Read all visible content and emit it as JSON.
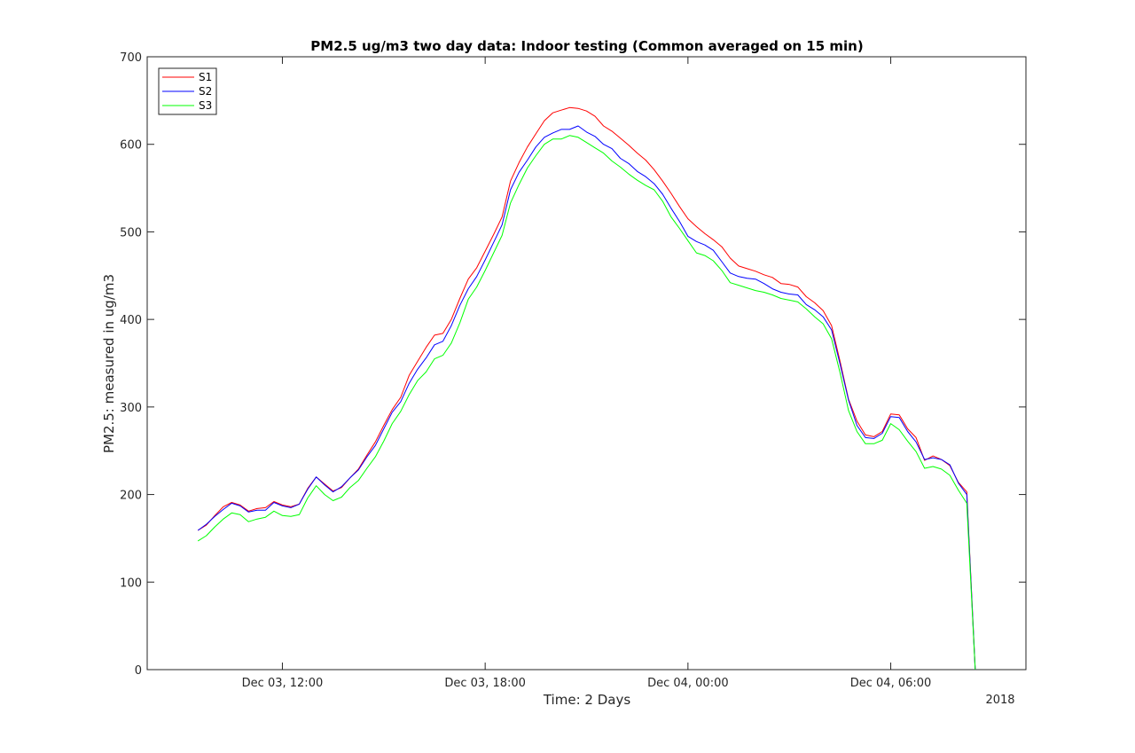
{
  "chart_data": {
    "type": "line",
    "title": "PM2.5 ug/m3 two day data: Indoor testing (Common averaged on 15 min)",
    "xlabel": "Time: 2 Days",
    "ylabel": "PM2.5: measured in ug/m3",
    "x_year_label": "2018",
    "x_ticks": [
      "Dec 03, 12:00",
      "Dec 03, 18:00",
      "Dec 04, 00:00",
      "Dec 04, 06:00"
    ],
    "y_ticks": [
      0,
      100,
      200,
      300,
      400,
      500,
      600,
      700
    ],
    "ylim": [
      0,
      700
    ],
    "xlim_hours": [
      "Dec 03, 08:00",
      "Dec 04, 10:00"
    ],
    "grid": false,
    "legend_position": "top-left",
    "colors": {
      "S1": "#ff0000",
      "S2": "#0000ff",
      "S3": "#00ff00",
      "axes": "#262626"
    },
    "series": [
      {
        "name": "S1",
        "color": "#ff0000",
        "x": [
          "Dec 03, 09:30",
          "Dec 03, 09:45",
          "Dec 03, 10:00",
          "Dec 03, 10:15",
          "Dec 03, 10:30",
          "Dec 03, 10:45",
          "Dec 03, 11:00",
          "Dec 03, 11:15",
          "Dec 03, 11:30",
          "Dec 03, 11:45",
          "Dec 03, 12:00",
          "Dec 03, 12:15",
          "Dec 03, 12:30",
          "Dec 03, 12:45",
          "Dec 03, 13:00",
          "Dec 03, 13:15",
          "Dec 03, 13:30",
          "Dec 03, 13:45",
          "Dec 03, 14:00",
          "Dec 03, 14:15",
          "Dec 03, 14:30",
          "Dec 03, 14:45",
          "Dec 03, 15:00",
          "Dec 03, 15:15",
          "Dec 03, 15:30",
          "Dec 03, 15:45",
          "Dec 03, 16:00",
          "Dec 03, 16:15",
          "Dec 03, 16:30",
          "Dec 03, 16:45",
          "Dec 03, 17:00",
          "Dec 03, 17:15",
          "Dec 03, 17:30",
          "Dec 03, 17:45",
          "Dec 03, 18:00",
          "Dec 03, 18:15",
          "Dec 03, 18:30",
          "Dec 03, 18:45",
          "Dec 03, 19:00",
          "Dec 03, 19:15",
          "Dec 03, 19:30",
          "Dec 03, 19:45",
          "Dec 03, 20:00",
          "Dec 03, 20:15",
          "Dec 03, 20:30",
          "Dec 03, 20:45",
          "Dec 03, 21:00",
          "Dec 03, 21:15",
          "Dec 03, 21:30",
          "Dec 03, 21:45",
          "Dec 03, 22:00",
          "Dec 03, 22:15",
          "Dec 03, 22:30",
          "Dec 03, 22:45",
          "Dec 03, 23:00",
          "Dec 03, 23:15",
          "Dec 03, 23:30",
          "Dec 03, 23:45",
          "Dec 04, 00:00",
          "Dec 04, 00:15",
          "Dec 04, 00:30",
          "Dec 04, 00:45",
          "Dec 04, 01:00",
          "Dec 04, 01:15",
          "Dec 04, 01:30",
          "Dec 04, 01:45",
          "Dec 04, 02:00",
          "Dec 04, 02:15",
          "Dec 04, 02:30",
          "Dec 04, 02:45",
          "Dec 04, 03:00",
          "Dec 04, 03:15",
          "Dec 04, 03:30",
          "Dec 04, 03:45",
          "Dec 04, 04:00",
          "Dec 04, 04:15",
          "Dec 04, 04:30",
          "Dec 04, 04:45",
          "Dec 04, 05:00",
          "Dec 04, 05:15",
          "Dec 04, 05:30",
          "Dec 04, 05:45",
          "Dec 04, 06:00",
          "Dec 04, 06:15",
          "Dec 04, 06:30",
          "Dec 04, 06:45",
          "Dec 04, 07:00",
          "Dec 04, 07:15",
          "Dec 04, 07:30",
          "Dec 04, 07:45",
          "Dec 04, 08:00",
          "Dec 04, 08:15",
          "Dec 04, 08:30"
        ],
        "values": [
          159,
          165,
          176,
          186,
          191,
          188,
          181,
          184,
          185,
          192,
          188,
          186,
          189,
          207,
          220,
          212,
          204,
          208,
          219,
          229,
          245,
          260,
          279,
          297,
          311,
          336,
          352,
          368,
          382,
          384,
          400,
          424,
          446,
          459,
          478,
          497,
          517,
          558,
          579,
          597,
          612,
          627,
          636,
          639,
          642,
          641,
          638,
          632,
          621,
          615,
          607,
          599,
          590,
          582,
          571,
          558,
          544,
          529,
          515,
          506,
          498,
          491,
          483,
          470,
          461,
          458,
          455,
          451,
          448,
          441,
          440,
          437,
          426,
          419,
          410,
          393,
          352,
          309,
          284,
          268,
          266,
          272,
          292,
          291,
          275,
          265,
          239,
          244,
          240,
          233,
          214,
          203,
          0
        ]
      },
      {
        "name": "S2",
        "color": "#0000ff",
        "x": [
          "Dec 03, 09:30",
          "Dec 03, 09:45",
          "Dec 03, 10:00",
          "Dec 03, 10:15",
          "Dec 03, 10:30",
          "Dec 03, 10:45",
          "Dec 03, 11:00",
          "Dec 03, 11:15",
          "Dec 03, 11:30",
          "Dec 03, 11:45",
          "Dec 03, 12:00",
          "Dec 03, 12:15",
          "Dec 03, 12:30",
          "Dec 03, 12:45",
          "Dec 03, 13:00",
          "Dec 03, 13:15",
          "Dec 03, 13:30",
          "Dec 03, 13:45",
          "Dec 03, 14:00",
          "Dec 03, 14:15",
          "Dec 03, 14:30",
          "Dec 03, 14:45",
          "Dec 03, 15:00",
          "Dec 03, 15:15",
          "Dec 03, 15:30",
          "Dec 03, 15:45",
          "Dec 03, 16:00",
          "Dec 03, 16:15",
          "Dec 03, 16:30",
          "Dec 03, 16:45",
          "Dec 03, 17:00",
          "Dec 03, 17:15",
          "Dec 03, 17:30",
          "Dec 03, 17:45",
          "Dec 03, 18:00",
          "Dec 03, 18:15",
          "Dec 03, 18:30",
          "Dec 03, 18:45",
          "Dec 03, 19:00",
          "Dec 03, 19:15",
          "Dec 03, 19:30",
          "Dec 03, 19:45",
          "Dec 03, 20:00",
          "Dec 03, 20:15",
          "Dec 03, 20:30",
          "Dec 03, 20:45",
          "Dec 03, 21:00",
          "Dec 03, 21:15",
          "Dec 03, 21:30",
          "Dec 03, 21:45",
          "Dec 03, 22:00",
          "Dec 03, 22:15",
          "Dec 03, 22:30",
          "Dec 03, 22:45",
          "Dec 03, 23:00",
          "Dec 03, 23:15",
          "Dec 03, 23:30",
          "Dec 03, 23:45",
          "Dec 04, 00:00",
          "Dec 04, 00:15",
          "Dec 04, 00:30",
          "Dec 04, 00:45",
          "Dec 04, 01:00",
          "Dec 04, 01:15",
          "Dec 04, 01:30",
          "Dec 04, 01:45",
          "Dec 04, 02:00",
          "Dec 04, 02:15",
          "Dec 04, 02:30",
          "Dec 04, 02:45",
          "Dec 04, 03:00",
          "Dec 04, 03:15",
          "Dec 04, 03:30",
          "Dec 04, 03:45",
          "Dec 04, 04:00",
          "Dec 04, 04:15",
          "Dec 04, 04:30",
          "Dec 04, 04:45",
          "Dec 04, 05:00",
          "Dec 04, 05:15",
          "Dec 04, 05:30",
          "Dec 04, 05:45",
          "Dec 04, 06:00",
          "Dec 04, 06:15",
          "Dec 04, 06:30",
          "Dec 04, 06:45",
          "Dec 04, 07:00",
          "Dec 04, 07:15",
          "Dec 04, 07:30",
          "Dec 04, 07:45",
          "Dec 04, 08:00",
          "Dec 04, 08:15",
          "Dec 04, 08:30"
        ],
        "values": [
          159,
          166,
          175,
          183,
          190,
          187,
          180,
          182,
          182,
          191,
          187,
          185,
          189,
          206,
          220,
          211,
          203,
          209,
          219,
          228,
          243,
          256,
          275,
          294,
          306,
          327,
          343,
          356,
          371,
          375,
          393,
          416,
          435,
          449,
          468,
          488,
          508,
          548,
          568,
          582,
          597,
          608,
          613,
          617,
          617,
          621,
          614,
          609,
          600,
          595,
          584,
          578,
          569,
          563,
          555,
          543,
          527,
          512,
          495,
          489,
          485,
          479,
          466,
          453,
          449,
          447,
          446,
          441,
          435,
          431,
          429,
          428,
          417,
          411,
          403,
          388,
          349,
          308,
          279,
          265,
          264,
          270,
          289,
          288,
          272,
          260,
          240,
          242,
          240,
          234,
          213,
          200,
          0
        ]
      },
      {
        "name": "S3",
        "color": "#00ff00",
        "x": [
          "Dec 03, 09:30",
          "Dec 03, 09:45",
          "Dec 03, 10:00",
          "Dec 03, 10:15",
          "Dec 03, 10:30",
          "Dec 03, 10:45",
          "Dec 03, 11:00",
          "Dec 03, 11:15",
          "Dec 03, 11:30",
          "Dec 03, 11:45",
          "Dec 03, 12:00",
          "Dec 03, 12:15",
          "Dec 03, 12:30",
          "Dec 03, 12:45",
          "Dec 03, 13:00",
          "Dec 03, 13:15",
          "Dec 03, 13:30",
          "Dec 03, 13:45",
          "Dec 03, 14:00",
          "Dec 03, 14:15",
          "Dec 03, 14:30",
          "Dec 03, 14:45",
          "Dec 03, 15:00",
          "Dec 03, 15:15",
          "Dec 03, 15:30",
          "Dec 03, 15:45",
          "Dec 03, 16:00",
          "Dec 03, 16:15",
          "Dec 03, 16:30",
          "Dec 03, 16:45",
          "Dec 03, 17:00",
          "Dec 03, 17:15",
          "Dec 03, 17:30",
          "Dec 03, 17:45",
          "Dec 03, 18:00",
          "Dec 03, 18:15",
          "Dec 03, 18:30",
          "Dec 03, 18:45",
          "Dec 03, 19:00",
          "Dec 03, 19:15",
          "Dec 03, 19:30",
          "Dec 03, 19:45",
          "Dec 03, 20:00",
          "Dec 03, 20:15",
          "Dec 03, 20:30",
          "Dec 03, 20:45",
          "Dec 03, 21:00",
          "Dec 03, 21:15",
          "Dec 03, 21:30",
          "Dec 03, 21:45",
          "Dec 03, 22:00",
          "Dec 03, 22:15",
          "Dec 03, 22:30",
          "Dec 03, 22:45",
          "Dec 03, 23:00",
          "Dec 03, 23:15",
          "Dec 03, 23:30",
          "Dec 03, 23:45",
          "Dec 04, 00:00",
          "Dec 04, 00:15",
          "Dec 04, 00:30",
          "Dec 04, 00:45",
          "Dec 04, 01:00",
          "Dec 04, 01:15",
          "Dec 04, 01:30",
          "Dec 04, 01:45",
          "Dec 04, 02:00",
          "Dec 04, 02:15",
          "Dec 04, 02:30",
          "Dec 04, 02:45",
          "Dec 04, 03:00",
          "Dec 04, 03:15",
          "Dec 04, 03:30",
          "Dec 04, 03:45",
          "Dec 04, 04:00",
          "Dec 04, 04:15",
          "Dec 04, 04:30",
          "Dec 04, 04:45",
          "Dec 04, 05:00",
          "Dec 04, 05:15",
          "Dec 04, 05:30",
          "Dec 04, 05:45",
          "Dec 04, 06:00",
          "Dec 04, 06:15",
          "Dec 04, 06:30",
          "Dec 04, 06:45",
          "Dec 04, 07:00",
          "Dec 04, 07:15",
          "Dec 04, 07:30",
          "Dec 04, 07:45",
          "Dec 04, 08:00",
          "Dec 04, 08:15",
          "Dec 04, 08:30"
        ],
        "values": [
          147,
          153,
          163,
          172,
          179,
          177,
          169,
          172,
          174,
          181,
          176,
          175,
          177,
          196,
          210,
          200,
          193,
          197,
          208,
          216,
          230,
          243,
          261,
          281,
          295,
          314,
          330,
          340,
          355,
          359,
          373,
          396,
          423,
          437,
          456,
          476,
          496,
          533,
          554,
          573,
          587,
          600,
          606,
          606,
          610,
          608,
          602,
          596,
          590,
          581,
          574,
          566,
          559,
          553,
          548,
          535,
          517,
          504,
          490,
          476,
          473,
          467,
          456,
          442,
          439,
          436,
          433,
          431,
          428,
          424,
          422,
          420,
          412,
          403,
          395,
          378,
          339,
          296,
          272,
          258,
          258,
          262,
          281,
          274,
          261,
          249,
          230,
          232,
          229,
          222,
          205,
          190,
          0
        ]
      }
    ]
  }
}
